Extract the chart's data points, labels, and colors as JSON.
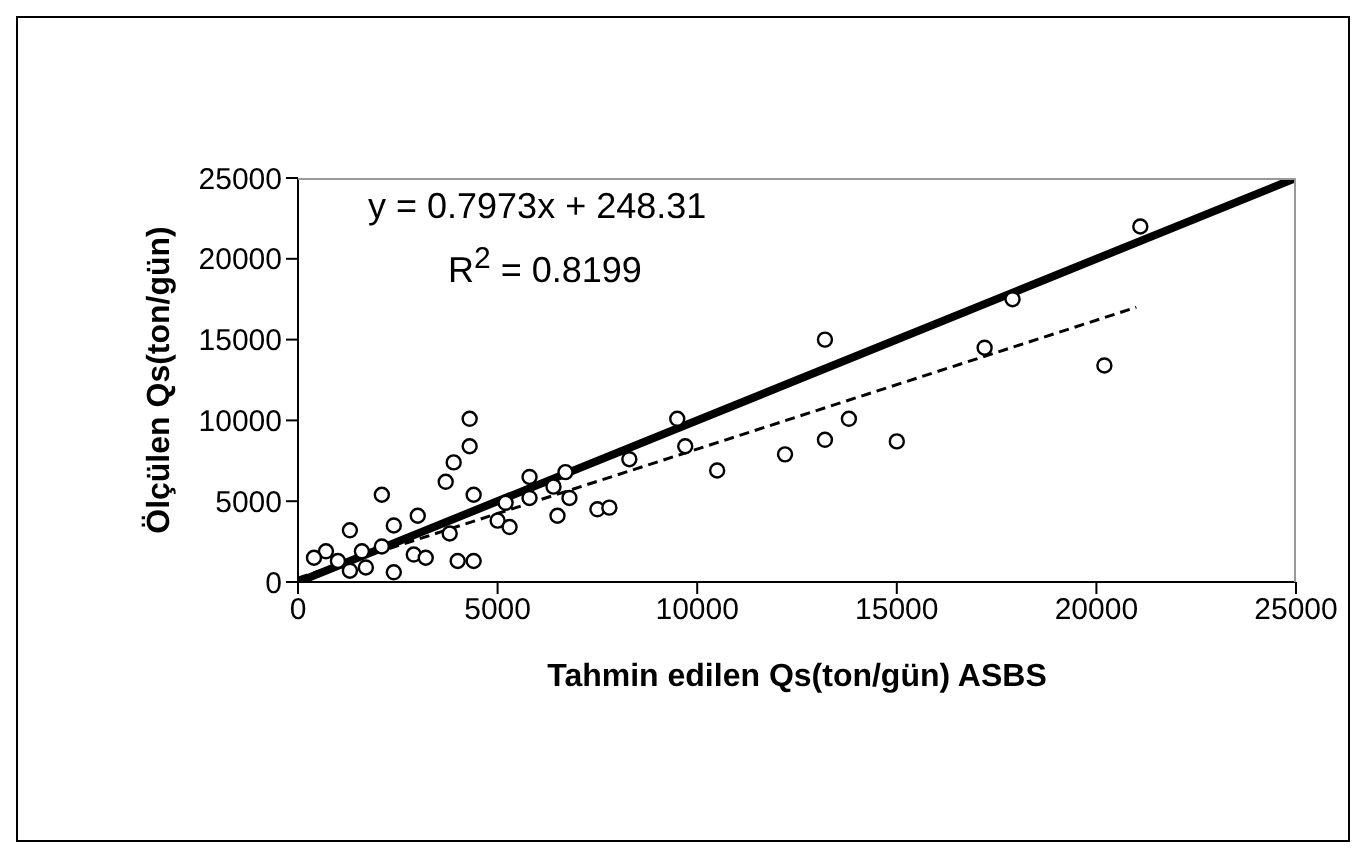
{
  "chart_data": {
    "type": "scatter",
    "xlabel": "Tahmin edilen Qs(ton/gün) ASBS",
    "ylabel": "Ölçülen Qs(ton/gün)",
    "annotations": [
      "y = 0.7973x + 248.31",
      "R$^{2}$ = 0.8199"
    ],
    "series": [
      {
        "color": "#000000",
        "marker": "circle",
        "x": [
          21100,
          17900,
          13200,
          17200,
          20200,
          9500,
          4300,
          4300,
          3900,
          3700,
          2100,
          9700,
          13800,
          13200,
          15000,
          12200,
          10500,
          8300,
          6700,
          5800,
          6400,
          4400,
          6800,
          5800,
          7500,
          7800,
          5200,
          5000,
          5300,
          6500,
          3000,
          2400,
          1300,
          3800,
          700,
          1600,
          2100,
          2900,
          3200,
          1700,
          2400,
          4000,
          4400,
          400,
          1300,
          1000
        ],
        "values": [
          22000,
          17500,
          15000,
          14500,
          13400,
          10100,
          10100,
          8400,
          7400,
          6200,
          5400,
          8400,
          10100,
          8800,
          8700,
          7900,
          6900,
          7600,
          6800,
          6500,
          5900,
          5400,
          5200,
          5200,
          4500,
          4600,
          4900,
          3800,
          3400,
          4100,
          4100,
          3500,
          3200,
          3000,
          1900,
          1900,
          2200,
          1700,
          1500,
          900,
          600,
          1300,
          1300,
          1500,
          700,
          1300
        ]
      },
      {
        "type": "line",
        "color": "#000000",
        "line_style": "solid",
        "x": [
          0,
          25000
        ],
        "values": [
          0,
          25000
        ]
      },
      {
        "type": "line",
        "color": "#000000",
        "line_style": "dashed",
        "x": [
          0,
          21000
        ],
        "values": [
          250,
          17000
        ]
      }
    ],
    "xlim": [
      0,
      25000
    ],
    "xticks": [
      0,
      5000,
      10000,
      15000,
      20000,
      25000
    ],
    "ylim": [
      0,
      25000
    ],
    "yticks": [
      0,
      5000,
      10000,
      15000,
      20000,
      25000
    ],
    "grid": false
  }
}
